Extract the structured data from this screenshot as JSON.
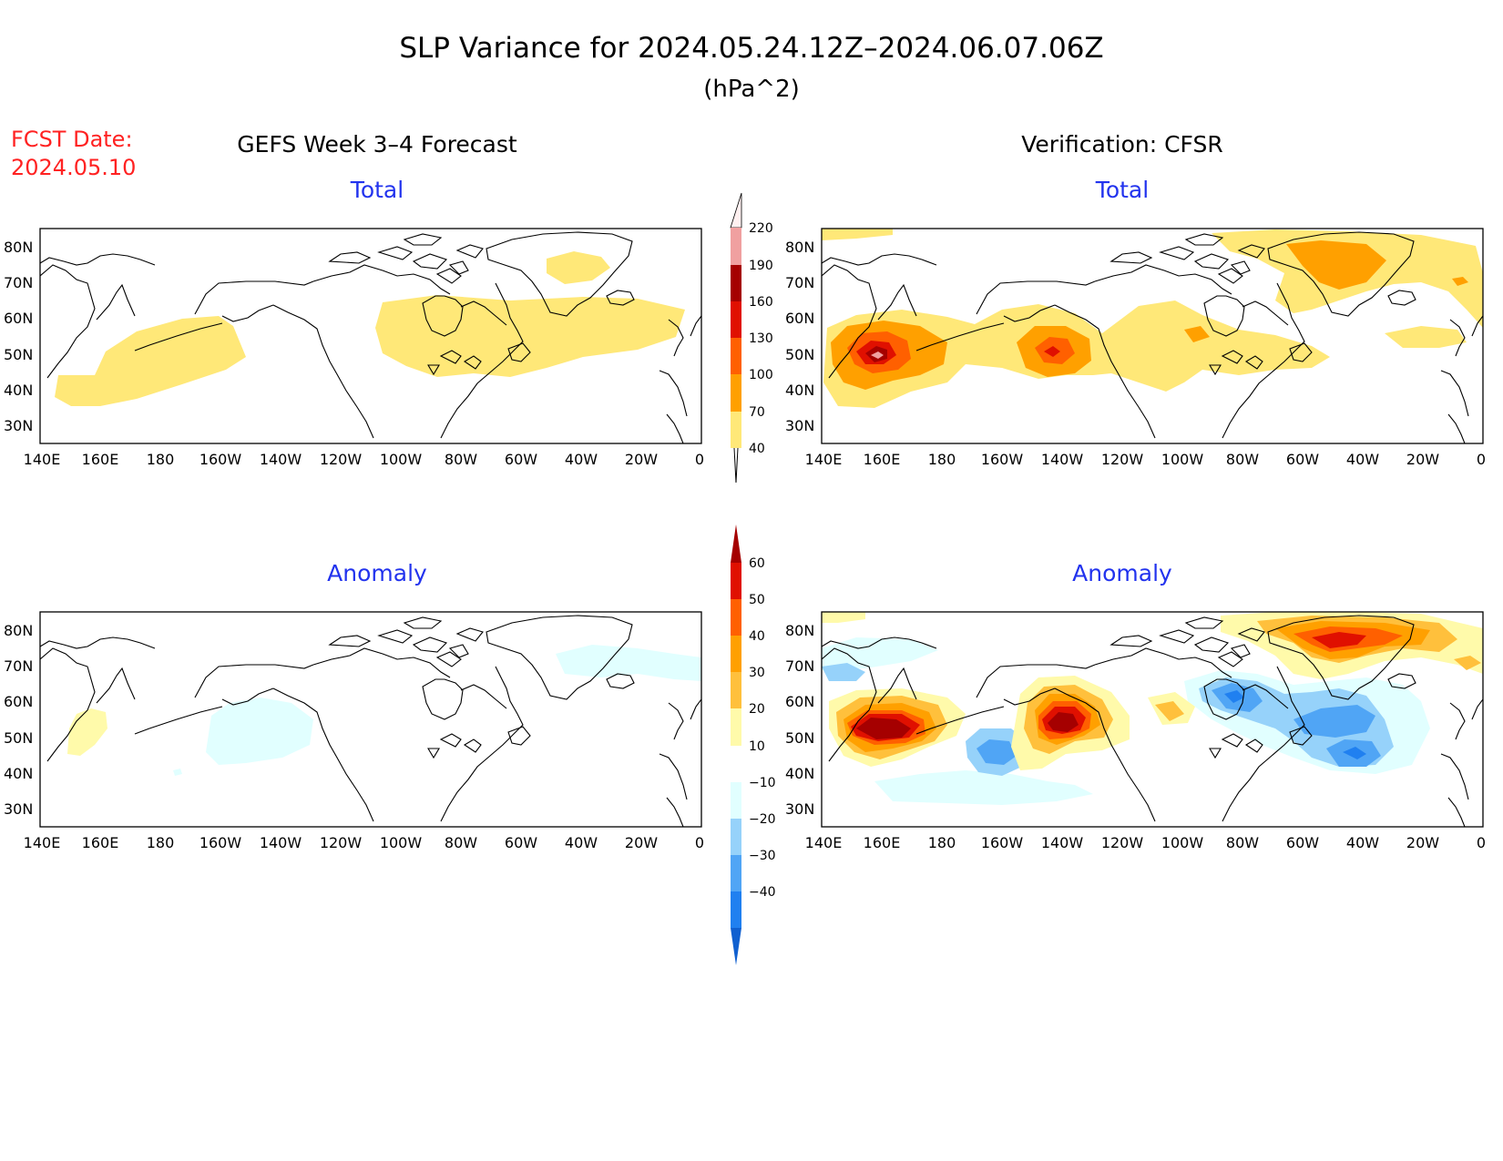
{
  "header": {
    "title": "SLP Variance for 2024.05.24.12Z–2024.06.07.06Z",
    "units": "(hPa^2)",
    "fcst_label": "FCST Date:",
    "fcst_date": "2024.05.10",
    "left_heading": "GEFS Week 3–4 Forecast",
    "right_heading": "Verification: CFSR"
  },
  "axes": {
    "lat_labels": [
      "80N",
      "70N",
      "60N",
      "50N",
      "40N",
      "30N"
    ],
    "lat_values": [
      80,
      70,
      60,
      50,
      40,
      30
    ],
    "lon_labels": [
      "140E",
      "160E",
      "180",
      "160W",
      "140W",
      "120W",
      "100W",
      "80W",
      "60W",
      "40W",
      "20W",
      "0"
    ],
    "lon_range": [
      140,
      360
    ],
    "lat_range": [
      25,
      85
    ]
  },
  "panels": [
    {
      "id": "forecast-total",
      "subtitle": "Total",
      "type": "total"
    },
    {
      "id": "verification-total",
      "subtitle": "Total",
      "type": "total"
    },
    {
      "id": "forecast-anomaly",
      "subtitle": "Anomaly",
      "type": "anomaly"
    },
    {
      "id": "verification-anomaly",
      "subtitle": "Anomaly",
      "type": "anomaly"
    }
  ],
  "colorbars": {
    "total": {
      "labels": [
        "40",
        "70",
        "100",
        "130",
        "160",
        "190",
        "220"
      ],
      "colors": [
        "#ffe878",
        "#ffa000",
        "#ff6000",
        "#e01000",
        "#a50000",
        "#f0a0a0",
        "#ffe0e0"
      ]
    },
    "anomaly": {
      "labels": [
        "−40",
        "−30",
        "−20",
        "−10",
        "10",
        "20",
        "30",
        "40",
        "50",
        "60"
      ],
      "colors": [
        "#1060d0",
        "#2080f0",
        "#50a5f5",
        "#96d2fa",
        "#e1ffff",
        "#ffffff",
        "#fffaaa",
        "#ffc03c",
        "#ffa000",
        "#ff6000",
        "#e01000",
        "#a50000"
      ]
    }
  },
  "chart_data": {
    "type": "heatmap",
    "x": "longitude",
    "y": "latitude",
    "total_levels": [
      40,
      70,
      100,
      130,
      160,
      190,
      220
    ],
    "anomaly_levels": [
      -40,
      -30,
      -20,
      -10,
      10,
      20,
      30,
      40,
      50,
      60
    ],
    "forecast_total": [
      {
        "lon": 175,
        "lat": 48,
        "level": 40
      },
      {
        "lon": 283,
        "lat": 55,
        "level": 40
      },
      {
        "lon": 320,
        "lat": 75,
        "level": 40
      }
    ],
    "verification_total": [
      {
        "lon": 160,
        "lat": 50,
        "level": 190
      },
      {
        "lon": 160,
        "lat": 50,
        "level": 160
      },
      {
        "lon": 218,
        "lat": 52,
        "level": 130
      },
      {
        "lon": 220,
        "lat": 52,
        "level": 100
      },
      {
        "lon": 317,
        "lat": 75,
        "level": 70
      }
    ],
    "forecast_anomaly": [
      {
        "lon": 205,
        "lat": 52,
        "level": -10
      },
      {
        "lon": 167,
        "lat": 50,
        "level": 10
      },
      {
        "lon": 330,
        "lat": 72,
        "level": -10
      }
    ],
    "verification_anomaly": [
      {
        "lon": 162,
        "lat": 52,
        "level": 50
      },
      {
        "lon": 220,
        "lat": 52,
        "level": 50
      },
      {
        "lon": 315,
        "lat": 76,
        "level": 40
      },
      {
        "lon": 270,
        "lat": 62,
        "level": -30
      },
      {
        "lon": 315,
        "lat": 55,
        "level": -30
      },
      {
        "lon": 313,
        "lat": 45,
        "level": -30
      },
      {
        "lon": 195,
        "lat": 45,
        "level": -30
      }
    ]
  }
}
